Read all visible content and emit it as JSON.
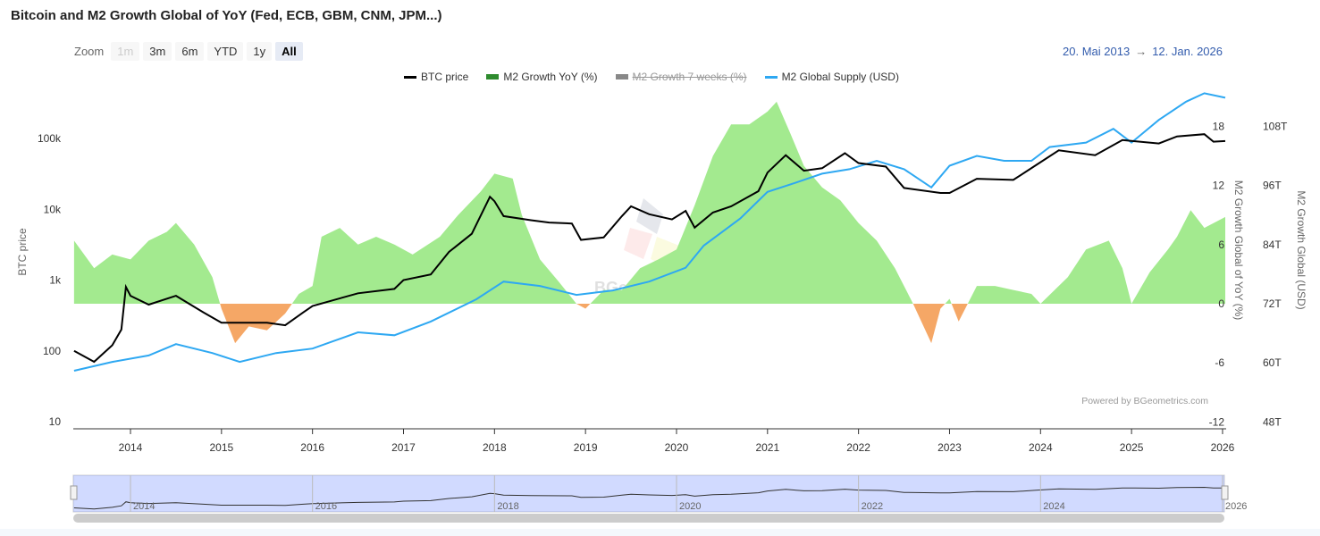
{
  "title": "Bitcoin and M2 Growth Global of YoY (Fed, ECB, GBM, CNM, JPM...)",
  "zoom": {
    "label": "Zoom",
    "buttons": [
      "1m",
      "3m",
      "6m",
      "YTD",
      "1y",
      "All"
    ],
    "disabled": "1m",
    "selected": "All"
  },
  "range": {
    "from": "20. Mai 2013",
    "arrow": "→",
    "to": "12. Jan. 2026"
  },
  "credits": "Powered by BGeometrics.com",
  "watermark": "BGeometrics",
  "colors": {
    "btc": "#000000",
    "m2_pos": "#a3ea8f",
    "m2_neg": "#f5a766",
    "m2_legend": "#2e8b2e",
    "supply": "#2ea8f2",
    "hidden": "#888888"
  },
  "chart_data": {
    "type": "line",
    "legend": [
      {
        "name": "BTC price",
        "visible": true
      },
      {
        "name": "M2 Growth YoY (%)",
        "visible": true
      },
      {
        "name": "M2 Growth 7 weeks (%)",
        "visible": false
      },
      {
        "name": "M2 Global Supply (USD)",
        "visible": true
      }
    ],
    "x_ticks": [
      "2014",
      "2015",
      "2016",
      "2017",
      "2018",
      "2019",
      "2020",
      "2021",
      "2022",
      "2023",
      "2024",
      "2025",
      "2026"
    ],
    "navigator_ticks": [
      "2014",
      "2016",
      "2018",
      "2020",
      "2022",
      "2024",
      "2026"
    ],
    "y_left": {
      "label": "BTC price",
      "scale": "log",
      "ticks": [
        "10",
        "100",
        "1k",
        "10k",
        "100k"
      ],
      "range": [
        10,
        300000
      ]
    },
    "y_right1": {
      "label": "M2 Growth Global of YoY (%)",
      "ticks": [
        "-12",
        "-6",
        "0",
        "6",
        "12",
        "18"
      ],
      "range": [
        -12,
        24
      ]
    },
    "y_right2": {
      "label": "M2 Growth Global (USD)",
      "ticks": [
        "48T",
        "60T",
        "72T",
        "84T",
        "96T",
        "108T"
      ],
      "range": [
        48,
        120
      ]
    },
    "series": [
      {
        "name": "BTC price",
        "axis": "left",
        "points": [
          [
            2013.38,
            100
          ],
          [
            2013.6,
            70
          ],
          [
            2013.8,
            120
          ],
          [
            2013.9,
            200
          ],
          [
            2013.95,
            800
          ],
          [
            2014.0,
            600
          ],
          [
            2014.2,
            450
          ],
          [
            2014.5,
            600
          ],
          [
            2014.8,
            350
          ],
          [
            2015.0,
            250
          ],
          [
            2015.2,
            250
          ],
          [
            2015.5,
            250
          ],
          [
            2015.7,
            230
          ],
          [
            2015.9,
            350
          ],
          [
            2016.0,
            430
          ],
          [
            2016.5,
            650
          ],
          [
            2016.9,
            750
          ],
          [
            2017.0,
            1000
          ],
          [
            2017.3,
            1200
          ],
          [
            2017.5,
            2500
          ],
          [
            2017.75,
            4500
          ],
          [
            2017.95,
            15000
          ],
          [
            2018.0,
            13000
          ],
          [
            2018.1,
            8000
          ],
          [
            2018.4,
            7000
          ],
          [
            2018.6,
            6500
          ],
          [
            2018.85,
            6300
          ],
          [
            2018.95,
            3700
          ],
          [
            2019.2,
            4000
          ],
          [
            2019.4,
            8000
          ],
          [
            2019.5,
            11000
          ],
          [
            2019.7,
            8500
          ],
          [
            2019.95,
            7200
          ],
          [
            2020.1,
            9500
          ],
          [
            2020.2,
            5500
          ],
          [
            2020.4,
            9000
          ],
          [
            2020.6,
            11000
          ],
          [
            2020.9,
            18000
          ],
          [
            2021.0,
            33000
          ],
          [
            2021.2,
            58000
          ],
          [
            2021.4,
            35000
          ],
          [
            2021.6,
            38000
          ],
          [
            2021.85,
            62000
          ],
          [
            2022.0,
            45000
          ],
          [
            2022.3,
            40000
          ],
          [
            2022.5,
            20000
          ],
          [
            2022.9,
            17000
          ],
          [
            2023.0,
            17000
          ],
          [
            2023.3,
            27000
          ],
          [
            2023.7,
            26000
          ],
          [
            2023.95,
            42000
          ],
          [
            2024.2,
            68000
          ],
          [
            2024.6,
            58000
          ],
          [
            2024.9,
            95000
          ],
          [
            2025.3,
            85000
          ],
          [
            2025.5,
            107000
          ],
          [
            2025.8,
            115000
          ],
          [
            2025.9,
            90000
          ],
          [
            2026.03,
            92000
          ]
        ]
      },
      {
        "name": "M2 Growth YoY (%)",
        "axis": "right1",
        "points": [
          [
            2013.38,
            6.4
          ],
          [
            2013.6,
            3.6
          ],
          [
            2013.8,
            5
          ],
          [
            2014.0,
            4.5
          ],
          [
            2014.2,
            6.4
          ],
          [
            2014.4,
            7.3
          ],
          [
            2014.5,
            8.2
          ],
          [
            2014.7,
            6
          ],
          [
            2014.9,
            2.7
          ],
          [
            2015.0,
            -0.5
          ],
          [
            2015.15,
            -4
          ],
          [
            2015.3,
            -2.3
          ],
          [
            2015.5,
            -2.7
          ],
          [
            2015.7,
            -1
          ],
          [
            2015.85,
            1
          ],
          [
            2016.0,
            1.8
          ],
          [
            2016.1,
            6.8
          ],
          [
            2016.3,
            7.7
          ],
          [
            2016.5,
            6
          ],
          [
            2016.7,
            6.8
          ],
          [
            2016.9,
            6
          ],
          [
            2017.1,
            5
          ],
          [
            2017.4,
            6.8
          ],
          [
            2017.6,
            9
          ],
          [
            2017.85,
            11.4
          ],
          [
            2018.0,
            13.2
          ],
          [
            2018.2,
            12.7
          ],
          [
            2018.3,
            9
          ],
          [
            2018.5,
            4.5
          ],
          [
            2018.7,
            2.3
          ],
          [
            2018.9,
            0
          ],
          [
            2019.0,
            -0.5
          ],
          [
            2019.2,
            1.4
          ],
          [
            2019.4,
            1.4
          ],
          [
            2019.6,
            3.6
          ],
          [
            2019.8,
            4.5
          ],
          [
            2020.0,
            5.5
          ],
          [
            2020.2,
            10
          ],
          [
            2020.4,
            15
          ],
          [
            2020.6,
            18.2
          ],
          [
            2020.8,
            18.2
          ],
          [
            2021.0,
            19.5
          ],
          [
            2021.1,
            20.5
          ],
          [
            2021.25,
            17.3
          ],
          [
            2021.4,
            14
          ],
          [
            2021.6,
            11.8
          ],
          [
            2021.8,
            10.5
          ],
          [
            2022.0,
            8.2
          ],
          [
            2022.2,
            6.4
          ],
          [
            2022.4,
            3.6
          ],
          [
            2022.6,
            0
          ],
          [
            2022.8,
            -4
          ],
          [
            2022.9,
            -0.5
          ],
          [
            2023.0,
            0.5
          ],
          [
            2023.1,
            -1.8
          ],
          [
            2023.3,
            1.8
          ],
          [
            2023.5,
            1.8
          ],
          [
            2023.7,
            1.4
          ],
          [
            2023.9,
            1
          ],
          [
            2024.0,
            0
          ],
          [
            2024.3,
            2.7
          ],
          [
            2024.5,
            5.5
          ],
          [
            2024.75,
            6.4
          ],
          [
            2024.9,
            3.6
          ],
          [
            2025.0,
            0
          ],
          [
            2025.2,
            3.2
          ],
          [
            2025.4,
            5.5
          ],
          [
            2025.5,
            6.8
          ],
          [
            2025.65,
            9.5
          ],
          [
            2025.8,
            7.7
          ],
          [
            2026.03,
            8.8
          ]
        ]
      },
      {
        "name": "M2 Global Supply (USD)",
        "axis": "right2",
        "points": [
          [
            2013.38,
            58.4
          ],
          [
            2013.8,
            60.2
          ],
          [
            2014.2,
            61.5
          ],
          [
            2014.5,
            63.8
          ],
          [
            2014.9,
            62
          ],
          [
            2015.2,
            60.2
          ],
          [
            2015.6,
            62
          ],
          [
            2016.0,
            62.9
          ],
          [
            2016.5,
            66.2
          ],
          [
            2016.9,
            65.6
          ],
          [
            2017.3,
            68.4
          ],
          [
            2017.8,
            72.9
          ],
          [
            2018.1,
            76.5
          ],
          [
            2018.5,
            75.6
          ],
          [
            2018.9,
            73.8
          ],
          [
            2019.3,
            74.7
          ],
          [
            2019.7,
            76.5
          ],
          [
            2020.1,
            79.3
          ],
          [
            2020.3,
            83.8
          ],
          [
            2020.7,
            89.3
          ],
          [
            2021.0,
            94.7
          ],
          [
            2021.3,
            96.5
          ],
          [
            2021.6,
            98.4
          ],
          [
            2021.9,
            99.3
          ],
          [
            2022.2,
            101
          ],
          [
            2022.5,
            99.3
          ],
          [
            2022.8,
            95.6
          ],
          [
            2023.0,
            100
          ],
          [
            2023.3,
            102
          ],
          [
            2023.6,
            101
          ],
          [
            2023.9,
            101
          ],
          [
            2024.1,
            103.8
          ],
          [
            2024.5,
            104.7
          ],
          [
            2024.8,
            107.5
          ],
          [
            2025.0,
            104.7
          ],
          [
            2025.3,
            109.3
          ],
          [
            2025.6,
            113
          ],
          [
            2025.8,
            114.7
          ],
          [
            2026.03,
            113.8
          ]
        ]
      }
    ]
  }
}
